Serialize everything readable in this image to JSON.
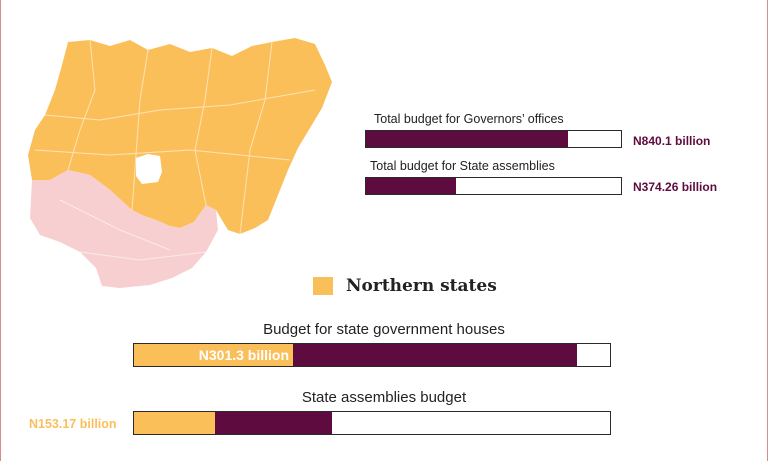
{
  "colors": {
    "northern": "#fbbf5a",
    "southern": "#f8cfd0",
    "total": "#5e0b3f",
    "border": "#2a2a2a"
  },
  "chart_data": [
    {
      "type": "bar",
      "orientation": "horizontal",
      "title": "",
      "categories": [
        "Total budget for Governors’ offices",
        "Total budget for State assemblies"
      ],
      "values": [
        840.1,
        374.26
      ],
      "value_labels": [
        "N840.1 billion",
        "N374.26 billion"
      ],
      "unit": "billion naira",
      "xlim": [
        0,
        1055
      ]
    },
    {
      "type": "bar",
      "orientation": "horizontal",
      "stacked": true,
      "legend": {
        "entries": [
          "Northern states"
        ],
        "placement": "center"
      },
      "categories": [
        "Budget for state government houses",
        "State assemblies budget"
      ],
      "series": [
        {
          "name": "Northern states",
          "values": [
            301.3,
            153.17
          ],
          "value_labels": [
            "N301.3 billion",
            "N153.17 billion"
          ]
        },
        {
          "values": [
            538.8,
            221.09
          ]
        }
      ],
      "totals": [
        840.1,
        374.26
      ],
      "xlim": [
        0,
        900
      ]
    }
  ],
  "map": {
    "icon": "nigeria-map-icon",
    "regions": [
      "northern",
      "southern"
    ]
  }
}
